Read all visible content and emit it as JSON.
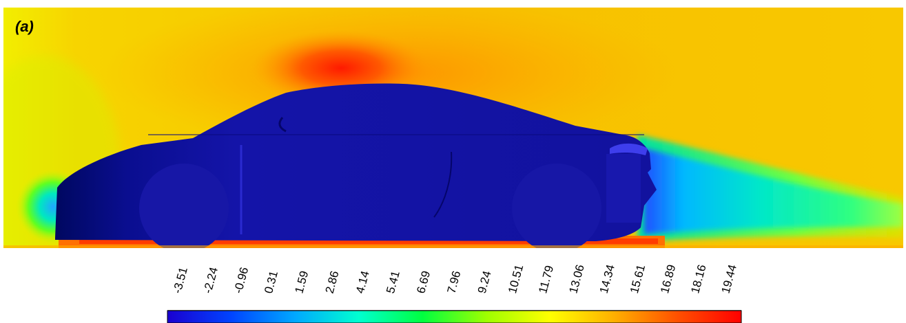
{
  "panel_label": "(a)",
  "colorbar": {
    "tick_labels": [
      "-3.51",
      "-2.24",
      "-0.96",
      "0.31",
      "1.59",
      "2.86",
      "4.14",
      "5.41",
      "6.69",
      "7.96",
      "9.24",
      "10.51",
      "11.79",
      "13.06",
      "14.34",
      "15.61",
      "16.89",
      "18.16",
      "19.44"
    ],
    "min": -3.51,
    "max": 19.44,
    "colors": [
      "#1a00d0",
      "#0044ff",
      "#00a8ff",
      "#00ffd0",
      "#00ff40",
      "#9eff00",
      "#ffff00",
      "#ffb000",
      "#ff5000",
      "#ff0000"
    ]
  },
  "colors": {
    "car_body": "#1010a8",
    "freestream": "#f5c000",
    "stagnation": "#00e070",
    "high_speed": "#ff2800"
  }
}
